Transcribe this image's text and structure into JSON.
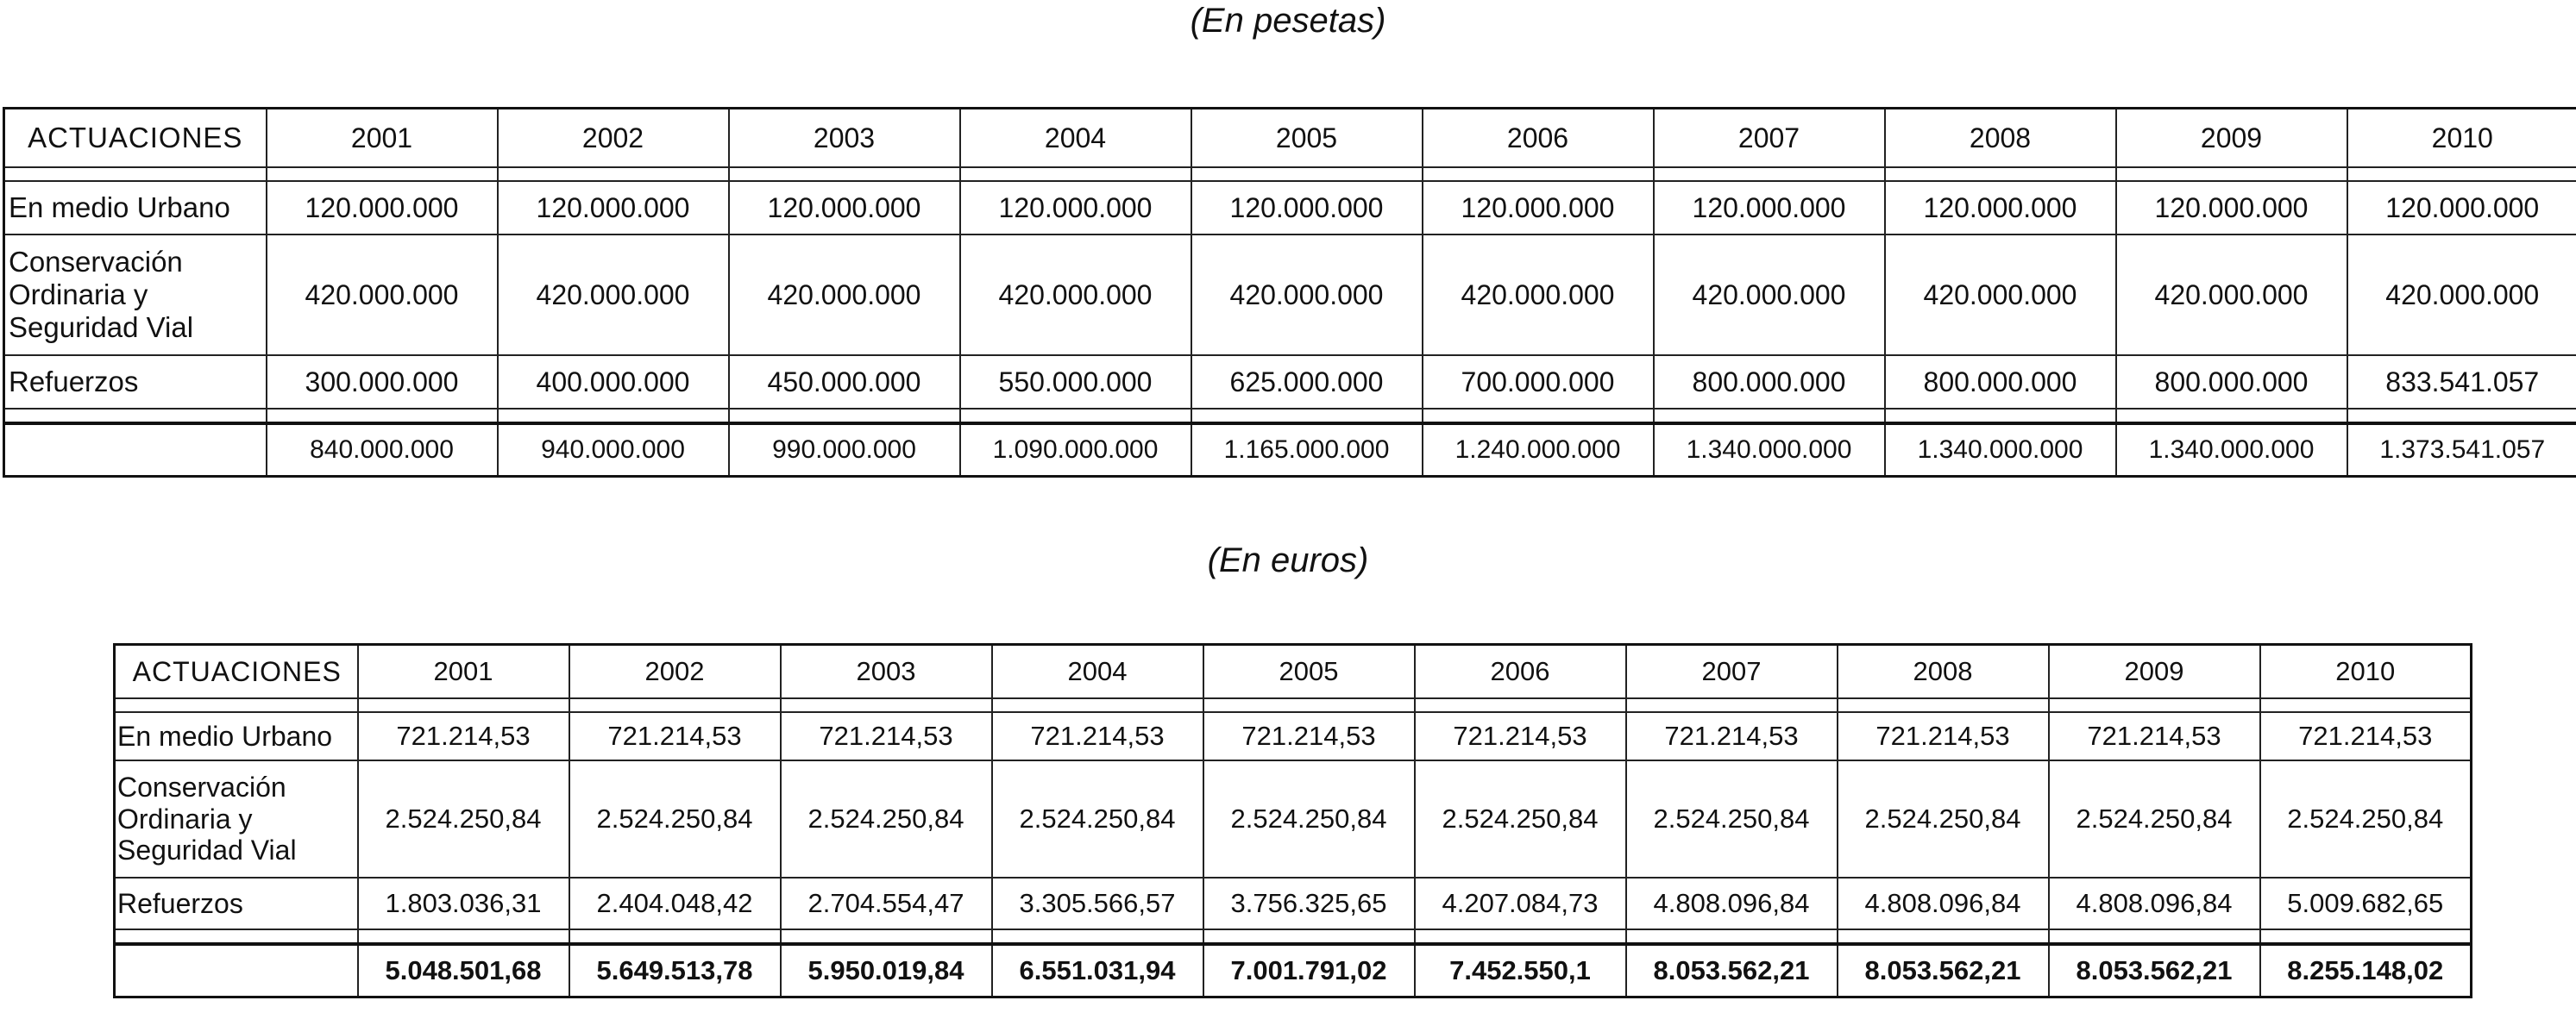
{
  "pesetas": {
    "caption": "(En pesetas)",
    "header": [
      "ACTUACIONES",
      "2001",
      "2002",
      "2003",
      "2004",
      "2005",
      "2006",
      "2007",
      "2008",
      "2009",
      "2010"
    ],
    "rows": [
      {
        "label": "En medio Urbano",
        "values": [
          "120.000.000",
          "120.000.000",
          "120.000.000",
          "120.000.000",
          "120.000.000",
          "120.000.000",
          "120.000.000",
          "120.000.000",
          "120.000.000",
          "120.000.000"
        ]
      },
      {
        "label": "Conservación Ordinaria y Seguridad Vial",
        "values": [
          "420.000.000",
          "420.000.000",
          "420.000.000",
          "420.000.000",
          "420.000.000",
          "420.000.000",
          "420.000.000",
          "420.000.000",
          "420.000.000",
          "420.000.000"
        ]
      },
      {
        "label": "Refuerzos",
        "values": [
          "300.000.000",
          "400.000.000",
          "450.000.000",
          "550.000.000",
          "625.000.000",
          "700.000.000",
          "800.000.000",
          "800.000.000",
          "800.000.000",
          "833.541.057"
        ]
      }
    ],
    "totals": [
      "840.000.000",
      "940.000.000",
      "990.000.000",
      "1.090.000.000",
      "1.165.000.000",
      "1.240.000.000",
      "1.340.000.000",
      "1.340.000.000",
      "1.340.000.000",
      "1.373.541.057"
    ]
  },
  "euros": {
    "caption": "(En euros)",
    "header": [
      "ACTUACIONES",
      "2001",
      "2002",
      "2003",
      "2004",
      "2005",
      "2006",
      "2007",
      "2008",
      "2009",
      "2010"
    ],
    "rows": [
      {
        "label": "En medio Urbano",
        "values": [
          "721.214,53",
          "721.214,53",
          "721.214,53",
          "721.214,53",
          "721.214,53",
          "721.214,53",
          "721.214,53",
          "721.214,53",
          "721.214,53",
          "721.214,53"
        ]
      },
      {
        "label": "Conservación Ordinaria y Seguridad Vial",
        "values": [
          "2.524.250,84",
          "2.524.250,84",
          "2.524.250,84",
          "2.524.250,84",
          "2.524.250,84",
          "2.524.250,84",
          "2.524.250,84",
          "2.524.250,84",
          "2.524.250,84",
          "2.524.250,84"
        ]
      },
      {
        "label": "Refuerzos",
        "values": [
          "1.803.036,31",
          "2.404.048,42",
          "2.704.554,47",
          "3.305.566,57",
          "3.756.325,65",
          "4.207.084,73",
          "4.808.096,84",
          "4.808.096,84",
          "4.808.096,84",
          "5.009.682,65"
        ]
      }
    ],
    "totals": [
      "5.048.501,68",
      "5.649.513,78",
      "5.950.019,84",
      "6.551.031,94",
      "7.001.791,02",
      "7.452.550,1",
      "8.053.562,21",
      "8.053.562,21",
      "8.053.562,21",
      "8.255.148,02"
    ]
  }
}
